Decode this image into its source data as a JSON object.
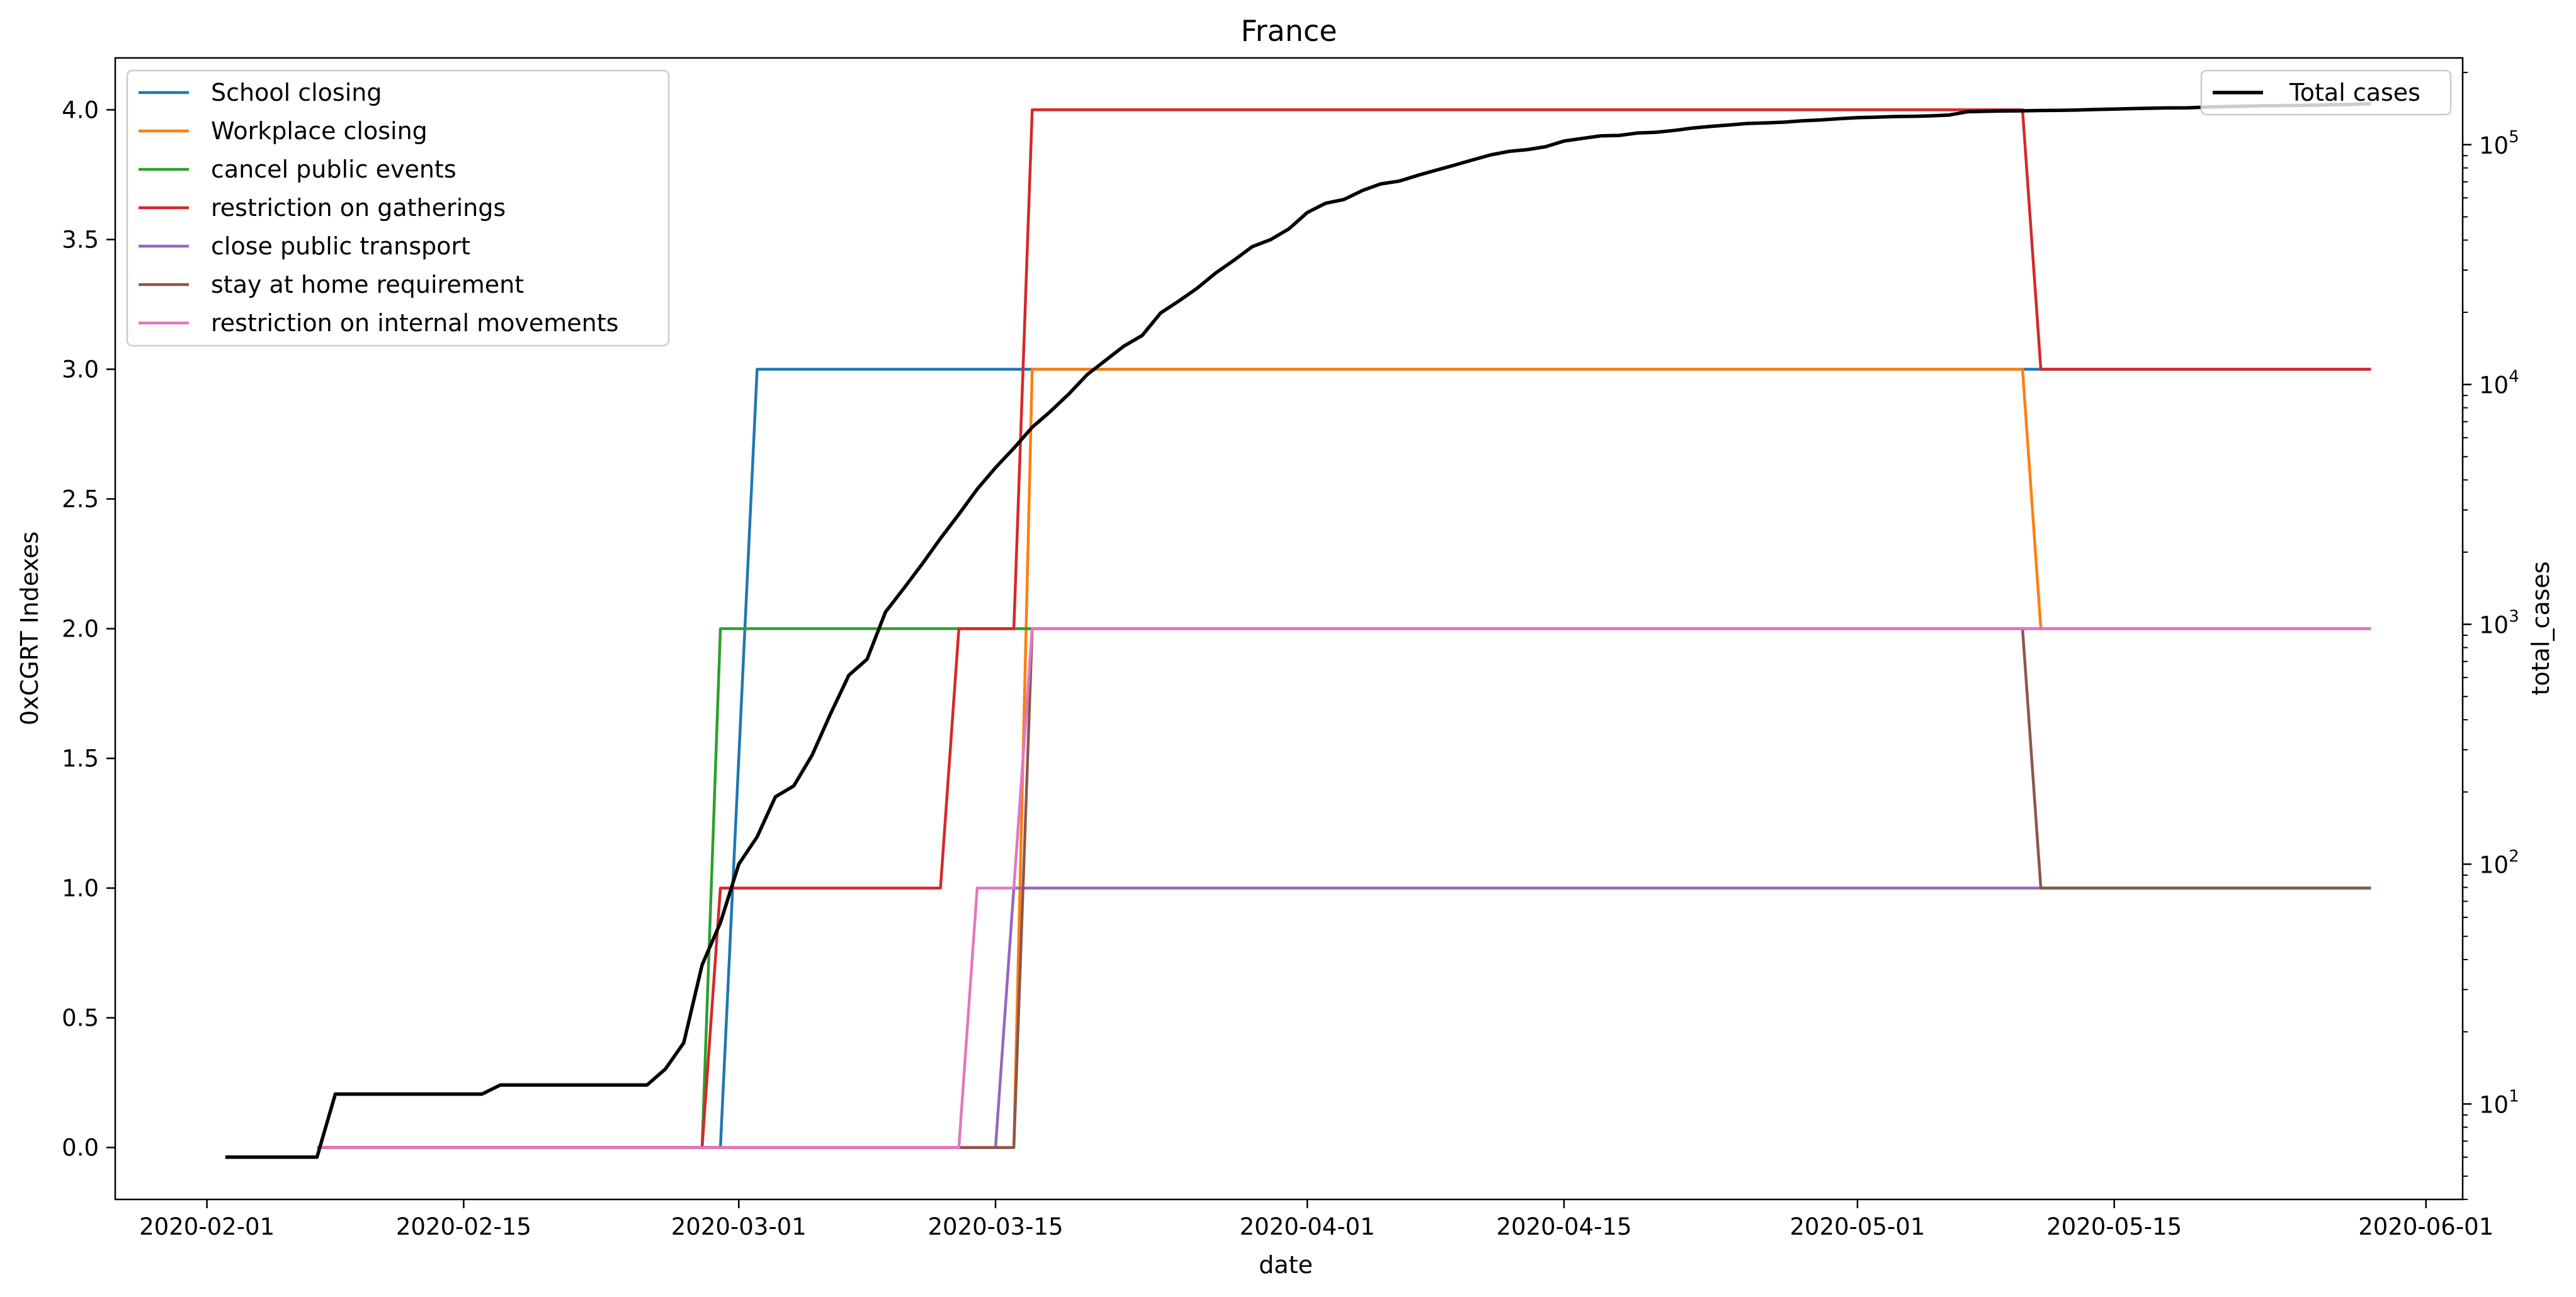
{
  "chart_data": {
    "type": "line",
    "title": "France",
    "xlabel": "date",
    "ylabel_left": "0xCGRT Indexes",
    "ylabel_right": "total_cases",
    "xlim": [
      "2020-01-27",
      "2020-06-03"
    ],
    "ylim_left": [
      -0.2,
      4.2
    ],
    "ylim_right": [
      4,
      230000
    ],
    "right_axis_scale": "log",
    "grid": false,
    "x_ticks": [
      "2020-02-01",
      "2020-02-15",
      "2020-03-01",
      "2020-03-15",
      "2020-04-01",
      "2020-04-15",
      "2020-05-01",
      "2020-05-15",
      "2020-06-01"
    ],
    "y_ticks_left": [
      "0.0",
      "0.5",
      "1.0",
      "1.5",
      "2.0",
      "2.5",
      "3.0",
      "3.5",
      "4.0"
    ],
    "y_ticks_right": [
      {
        "value": 10,
        "base": "10",
        "exp": "1"
      },
      {
        "value": 100,
        "base": "10",
        "exp": "2"
      },
      {
        "value": 1000,
        "base": "10",
        "exp": "3"
      },
      {
        "value": 10000,
        "base": "10",
        "exp": "4"
      },
      {
        "value": 100000,
        "base": "10",
        "exp": "5"
      }
    ],
    "legend_left_position": "upper-left",
    "legend_right_position": "upper-right",
    "series": [
      {
        "name": "School closing",
        "axis": "left",
        "color": "#1f77b4",
        "points": [
          [
            "2020-02-07",
            0
          ],
          [
            "2020-02-29",
            0
          ],
          [
            "2020-03-02",
            3
          ],
          [
            "2020-05-29",
            3
          ]
        ]
      },
      {
        "name": "Workplace closing",
        "axis": "left",
        "color": "#ff7f0e",
        "points": [
          [
            "2020-02-07",
            0
          ],
          [
            "2020-03-16",
            0
          ],
          [
            "2020-03-17",
            3
          ],
          [
            "2020-05-10",
            3
          ],
          [
            "2020-05-11",
            2
          ],
          [
            "2020-05-29",
            2
          ]
        ]
      },
      {
        "name": "cancel public events",
        "axis": "left",
        "color": "#2ca02c",
        "points": [
          [
            "2020-02-07",
            0
          ],
          [
            "2020-02-28",
            0
          ],
          [
            "2020-02-29",
            2
          ],
          [
            "2020-05-29",
            2
          ]
        ]
      },
      {
        "name": "restriction on gatherings",
        "axis": "left",
        "color": "#d62728",
        "points": [
          [
            "2020-02-07",
            0
          ],
          [
            "2020-02-28",
            0
          ],
          [
            "2020-02-29",
            1
          ],
          [
            "2020-03-12",
            1
          ],
          [
            "2020-03-13",
            2
          ],
          [
            "2020-03-16",
            2
          ],
          [
            "2020-03-17",
            4
          ],
          [
            "2020-05-10",
            4
          ],
          [
            "2020-05-11",
            3
          ],
          [
            "2020-05-29",
            3
          ]
        ]
      },
      {
        "name": "close public transport",
        "axis": "left",
        "color": "#9467bd",
        "points": [
          [
            "2020-02-07",
            0
          ],
          [
            "2020-03-15",
            0
          ],
          [
            "2020-03-16",
            1
          ],
          [
            "2020-05-29",
            1
          ]
        ]
      },
      {
        "name": "stay at home requirement",
        "axis": "left",
        "color": "#8c564b",
        "points": [
          [
            "2020-02-07",
            0
          ],
          [
            "2020-03-16",
            0
          ],
          [
            "2020-03-17",
            2
          ],
          [
            "2020-05-10",
            2
          ],
          [
            "2020-05-11",
            1
          ],
          [
            "2020-05-29",
            1
          ]
        ]
      },
      {
        "name": "restriction on internal movements",
        "axis": "left",
        "color": "#e377c2",
        "points": [
          [
            "2020-02-07",
            0
          ],
          [
            "2020-03-13",
            0
          ],
          [
            "2020-03-14",
            1
          ],
          [
            "2020-03-16",
            1
          ],
          [
            "2020-03-17",
            2
          ],
          [
            "2020-05-29",
            2
          ]
        ]
      },
      {
        "name": "Total cases",
        "axis": "right",
        "color": "#000000",
        "points": [
          [
            "2020-02-02",
            6
          ],
          [
            "2020-02-07",
            6
          ],
          [
            "2020-02-08",
            11
          ],
          [
            "2020-02-16",
            11
          ],
          [
            "2020-02-17",
            12
          ],
          [
            "2020-02-25",
            12
          ],
          [
            "2020-02-26",
            14
          ],
          [
            "2020-02-27",
            18
          ],
          [
            "2020-02-28",
            38
          ],
          [
            "2020-02-29",
            57
          ],
          [
            "2020-03-01",
            100
          ],
          [
            "2020-03-02",
            130
          ],
          [
            "2020-03-03",
            191
          ],
          [
            "2020-03-04",
            212
          ],
          [
            "2020-03-05",
            285
          ],
          [
            "2020-03-06",
            423
          ],
          [
            "2020-03-07",
            613
          ],
          [
            "2020-03-08",
            716
          ],
          [
            "2020-03-09",
            1126
          ],
          [
            "2020-03-10",
            1412
          ],
          [
            "2020-03-11",
            1784
          ],
          [
            "2020-03-12",
            2281
          ],
          [
            "2020-03-13",
            2876
          ],
          [
            "2020-03-14",
            3661
          ],
          [
            "2020-03-15",
            4499
          ],
          [
            "2020-03-16",
            5423
          ],
          [
            "2020-03-17",
            6633
          ],
          [
            "2020-03-18",
            7730
          ],
          [
            "2020-03-19",
            9134
          ],
          [
            "2020-03-20",
            10995
          ],
          [
            "2020-03-21",
            12612
          ],
          [
            "2020-03-22",
            14459
          ],
          [
            "2020-03-23",
            16018
          ],
          [
            "2020-03-24",
            19856
          ],
          [
            "2020-03-25",
            22302
          ],
          [
            "2020-03-26",
            25233
          ],
          [
            "2020-03-27",
            29155
          ],
          [
            "2020-03-28",
            32964
          ],
          [
            "2020-03-29",
            37575
          ],
          [
            "2020-03-30",
            40174
          ],
          [
            "2020-03-31",
            44550
          ],
          [
            "2020-04-01",
            52128
          ],
          [
            "2020-04-02",
            56989
          ],
          [
            "2020-04-03",
            59105
          ],
          [
            "2020-04-04",
            64338
          ],
          [
            "2020-04-05",
            68605
          ],
          [
            "2020-04-06",
            70478
          ],
          [
            "2020-04-07",
            74390
          ],
          [
            "2020-04-08",
            78167
          ],
          [
            "2020-04-09",
            82048
          ],
          [
            "2020-04-10",
            86334
          ],
          [
            "2020-04-11",
            90676
          ],
          [
            "2020-04-12",
            93790
          ],
          [
            "2020-04-13",
            95403
          ],
          [
            "2020-04-14",
            98076
          ],
          [
            "2020-04-15",
            103573
          ],
          [
            "2020-04-16",
            106206
          ],
          [
            "2020-04-17",
            108847
          ],
          [
            "2020-04-18",
            109252
          ],
          [
            "2020-04-19",
            111821
          ],
          [
            "2020-04-20",
            112606
          ],
          [
            "2020-04-21",
            114657
          ],
          [
            "2020-04-22",
            117324
          ],
          [
            "2020-04-23",
            119151
          ],
          [
            "2020-04-24",
            120804
          ],
          [
            "2020-04-25",
            122577
          ],
          [
            "2020-04-26",
            123279
          ],
          [
            "2020-04-27",
            124114
          ],
          [
            "2020-04-28",
            125770
          ],
          [
            "2020-04-29",
            126835
          ],
          [
            "2020-04-30",
            128339
          ],
          [
            "2020-05-01",
            129581
          ],
          [
            "2020-05-02",
            130185
          ],
          [
            "2020-05-03",
            130979
          ],
          [
            "2020-05-04",
            131287
          ],
          [
            "2020-05-05",
            131863
          ],
          [
            "2020-05-06",
            132967
          ],
          [
            "2020-05-07",
            137150
          ],
          [
            "2020-05-08",
            137779
          ],
          [
            "2020-05-09",
            138161
          ],
          [
            "2020-05-10",
            138421
          ],
          [
            "2020-05-11",
            138854
          ],
          [
            "2020-05-12",
            139063
          ],
          [
            "2020-05-13",
            139519
          ],
          [
            "2020-05-14",
            140227
          ],
          [
            "2020-05-15",
            140734
          ],
          [
            "2020-05-16",
            141356
          ],
          [
            "2020-05-17",
            141919
          ],
          [
            "2020-05-18",
            142291
          ],
          [
            "2020-05-19",
            142411
          ],
          [
            "2020-05-20",
            143427
          ],
          [
            "2020-05-21",
            144163
          ],
          [
            "2020-05-22",
            144556
          ],
          [
            "2020-05-23",
            145279
          ],
          [
            "2020-05-24",
            145555
          ],
          [
            "2020-05-25",
            145746
          ],
          [
            "2020-05-26",
            146122
          ],
          [
            "2020-05-27",
            146799
          ],
          [
            "2020-05-28",
            147349
          ],
          [
            "2020-05-29",
            148084
          ]
        ]
      }
    ]
  }
}
